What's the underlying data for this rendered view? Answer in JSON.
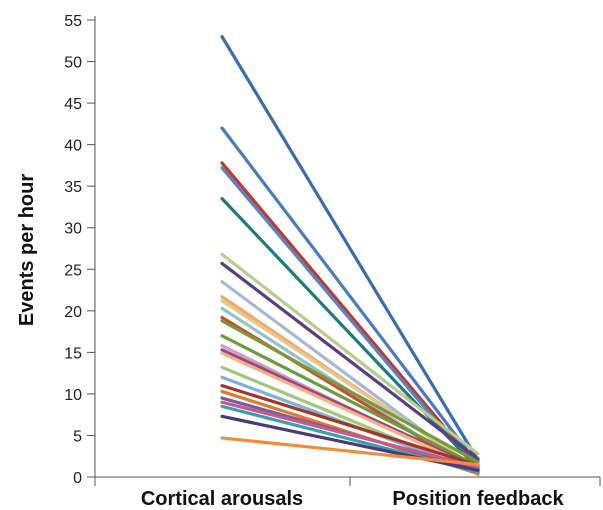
{
  "chart_data": {
    "type": "line",
    "title": "",
    "xlabel": "",
    "ylabel": "Events per hour",
    "categories": [
      "Cortical arousals",
      "Position feedback"
    ],
    "ylim": [
      0,
      55
    ],
    "yticks": [
      0,
      5,
      10,
      15,
      20,
      25,
      30,
      35,
      40,
      45,
      50,
      55
    ],
    "grid": false,
    "legend": "none",
    "series": [
      {
        "color": "#3a6cb0",
        "values": [
          53.0,
          2.0
        ]
      },
      {
        "color": "#4a7ac0",
        "values": [
          42.0,
          1.5
        ]
      },
      {
        "color": "#c0392b",
        "values": [
          37.8,
          1.2
        ]
      },
      {
        "color": "#5b83c4",
        "values": [
          37.2,
          0.8
        ]
      },
      {
        "color": "#1e7b7b",
        "values": [
          33.5,
          1.0
        ]
      },
      {
        "color": "#b5cf8a",
        "values": [
          26.8,
          2.8
        ]
      },
      {
        "color": "#5a3d86",
        "values": [
          25.7,
          2.2
        ]
      },
      {
        "color": "#a5b8d8",
        "values": [
          23.5,
          0.6
        ]
      },
      {
        "color": "#f0a868",
        "values": [
          21.7,
          0.8
        ]
      },
      {
        "color": "#e8c88a",
        "values": [
          21.2,
          1.0
        ]
      },
      {
        "color": "#8ec5c7",
        "values": [
          20.3,
          0.3
        ]
      },
      {
        "color": "#d04a30",
        "values": [
          19.2,
          0.5
        ]
      },
      {
        "color": "#7a9a3a",
        "values": [
          18.8,
          1.8
        ]
      },
      {
        "color": "#6a9c3e",
        "values": [
          17.0,
          1.3
        ]
      },
      {
        "color": "#c8a0c8",
        "values": [
          15.8,
          0.7
        ]
      },
      {
        "color": "#9a4a7a",
        "values": [
          15.3,
          1.1
        ]
      },
      {
        "color": "#f4b183",
        "values": [
          14.9,
          0.9
        ]
      },
      {
        "color": "#a0c878",
        "values": [
          13.2,
          0.5
        ]
      },
      {
        "color": "#7fb3d5",
        "values": [
          12.0,
          0.6
        ]
      },
      {
        "color": "#a93226",
        "values": [
          11.0,
          1.4
        ]
      },
      {
        "color": "#e07a2a",
        "values": [
          10.3,
          0.4
        ]
      },
      {
        "color": "#7a5aa0",
        "values": [
          9.5,
          0.9
        ]
      },
      {
        "color": "#c75a8a",
        "values": [
          9.0,
          1.2
        ]
      },
      {
        "color": "#3aa0b0",
        "values": [
          8.5,
          0.6
        ]
      },
      {
        "color": "#4a3a7a",
        "values": [
          7.3,
          0.8
        ]
      },
      {
        "color": "#f08c3a",
        "values": [
          4.7,
          1.5
        ]
      }
    ]
  }
}
